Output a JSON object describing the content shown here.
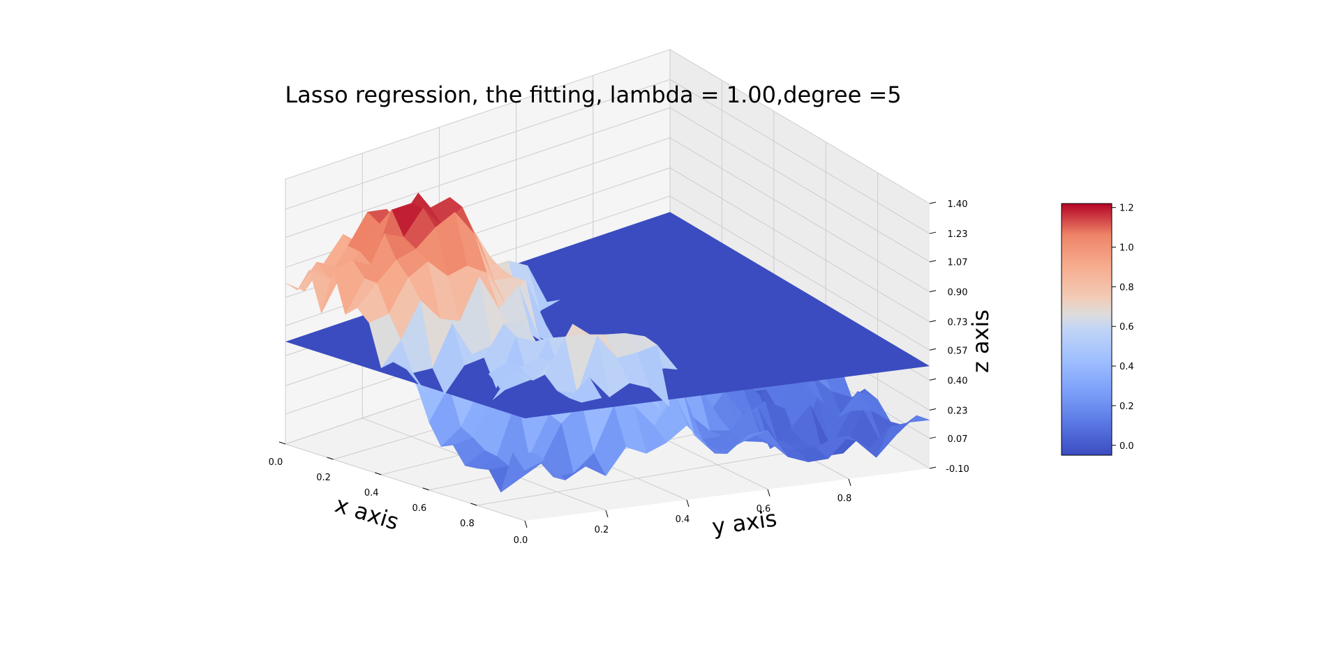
{
  "chart_data": {
    "type": "surface3d",
    "title": "Lasso regression, the fitting, lambda = 1.00,degree =5",
    "xlabel": "x axis",
    "ylabel": "y axis",
    "zlabel": "z axis",
    "xlim": [
      0,
      1
    ],
    "ylim": [
      0,
      1
    ],
    "zlim": [
      -0.1,
      1.4
    ],
    "x_ticks": [
      "0.0",
      "0.2",
      "0.4",
      "0.6",
      "0.8"
    ],
    "y_ticks": [
      "0.0",
      "0.2",
      "0.4",
      "0.6",
      "0.8"
    ],
    "z_ticks": [
      "-0.10",
      "0.07",
      "0.23",
      "0.40",
      "0.57",
      "0.73",
      "0.90",
      "1.07",
      "1.23",
      "1.40"
    ],
    "colormap": "coolwarm",
    "colorbar": {
      "ticks": [
        "0.0",
        "0.2",
        "0.4",
        "0.6",
        "0.8",
        "1.0",
        "1.2"
      ],
      "range": [
        -0.05,
        1.22
      ]
    },
    "fit_plane": {
      "z": 0.48,
      "color": "#3b4cc0"
    },
    "noisy_surface": {
      "grid_size": 20,
      "z_range": [
        -0.05,
        1.22
      ],
      "peak_at": [
        0.2,
        0.2
      ]
    },
    "grid": true
  }
}
